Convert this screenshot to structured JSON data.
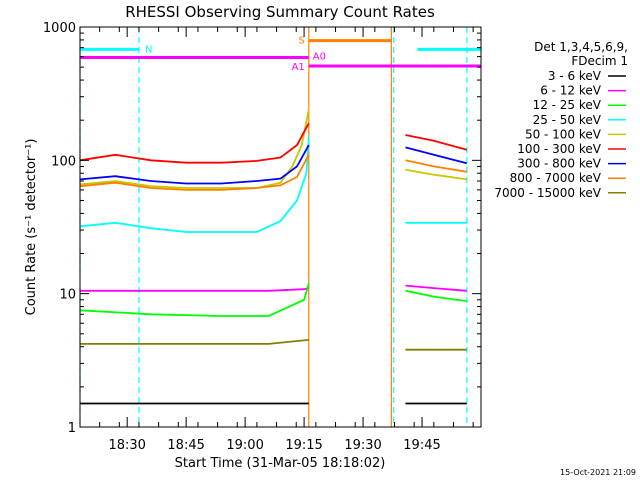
{
  "chart_data": {
    "type": "line",
    "title": "RHESSI Observing Summary Count Rates",
    "xlabel": "Start Time (31-Mar-05 18:18:02)",
    "ylabel": "Count Rate (s⁻¹ detector⁻¹)",
    "x_range_min": [
      18.3,
      20.0
    ],
    "y_scale": "log",
    "ylim": [
      1,
      1000
    ],
    "x_ticks": [
      {
        "label": "18:30",
        "v": 18.5
      },
      {
        "label": "18:45",
        "v": 18.75
      },
      {
        "label": "19:00",
        "v": 19.0
      },
      {
        "label": "19:15",
        "v": 19.25
      },
      {
        "label": "19:30",
        "v": 19.5
      },
      {
        "label": "19:45",
        "v": 19.75
      }
    ],
    "y_ticks": [
      {
        "label": "1",
        "v": 1
      },
      {
        "label": "10",
        "v": 10
      },
      {
        "label": "100",
        "v": 100
      },
      {
        "label": "1000",
        "v": 1000
      }
    ],
    "legend": {
      "header": [
        "Det 1,3,4,5,6,9,",
        "FDecim 1"
      ],
      "position": "right"
    },
    "series": [
      {
        "name": "3 - 6 keV",
        "color": "#000000",
        "segments": [
          {
            "x": [
              18.3,
              18.6,
              18.9,
              19.1,
              19.27
            ],
            "y": [
              1.5,
              1.5,
              1.5,
              1.5,
              1.5
            ]
          },
          {
            "x": [
              19.68,
              19.8,
              19.94
            ],
            "y": [
              1.5,
              1.5,
              1.5
            ]
          }
        ]
      },
      {
        "name": "6 - 12 keV",
        "color": "#ff00ff",
        "segments": [
          {
            "x": [
              18.3,
              18.6,
              18.9,
              19.1,
              19.25,
              19.27
            ],
            "y": [
              10.5,
              10.5,
              10.5,
              10.5,
              10.8,
              11
            ]
          },
          {
            "x": [
              19.68,
              19.8,
              19.94
            ],
            "y": [
              11.5,
              11,
              10.5
            ]
          }
        ]
      },
      {
        "name": "12 - 25 keV",
        "color": "#00ff00",
        "segments": [
          {
            "x": [
              18.3,
              18.6,
              18.9,
              19.1,
              19.25,
              19.27
            ],
            "y": [
              7.5,
              7,
              6.8,
              6.8,
              9,
              12
            ]
          },
          {
            "x": [
              19.68,
              19.8,
              19.94
            ],
            "y": [
              10.5,
              9.5,
              8.8
            ]
          }
        ]
      },
      {
        "name": "25 - 50 keV",
        "color": "#00ffff",
        "segments": [
          {
            "x": [
              18.3,
              18.45,
              18.6,
              18.75,
              18.9,
              19.05,
              19.15,
              19.22,
              19.26,
              19.27
            ],
            "y": [
              32,
              34,
              31,
              29,
              29,
              29,
              35,
              50,
              80,
              150
            ]
          },
          {
            "x": [
              19.68,
              19.8,
              19.94
            ],
            "y": [
              34,
              34,
              34
            ]
          }
        ]
      },
      {
        "name": "50 - 100 keV",
        "color": "#c8c800",
        "segments": [
          {
            "x": [
              18.3,
              18.45,
              18.6,
              18.75,
              18.9,
              19.05,
              19.15,
              19.2,
              19.24,
              19.27
            ],
            "y": [
              66,
              70,
              64,
              62,
              62,
              62,
              68,
              90,
              130,
              240
            ]
          },
          {
            "x": [
              19.68,
              19.8,
              19.94
            ],
            "y": [
              85,
              78,
              72
            ]
          }
        ]
      },
      {
        "name": "100 - 300 keV",
        "color": "#ff0000",
        "segments": [
          {
            "x": [
              18.3,
              18.45,
              18.6,
              18.75,
              18.9,
              19.05,
              19.15,
              19.22,
              19.27
            ],
            "y": [
              100,
              110,
              100,
              96,
              96,
              99,
              105,
              130,
              190
            ]
          },
          {
            "x": [
              19.68,
              19.8,
              19.94
            ],
            "y": [
              155,
              140,
              120
            ]
          }
        ]
      },
      {
        "name": "300 - 800 keV",
        "color": "#0000ff",
        "segments": [
          {
            "x": [
              18.3,
              18.45,
              18.6,
              18.75,
              18.9,
              19.05,
              19.15,
              19.22,
              19.27
            ],
            "y": [
              72,
              76,
              70,
              67,
              67,
              70,
              73,
              90,
              130
            ]
          },
          {
            "x": [
              19.68,
              19.8,
              19.94
            ],
            "y": [
              125,
              110,
              95
            ]
          }
        ]
      },
      {
        "name": "800 - 7000 keV",
        "color": "#ff8000",
        "segments": [
          {
            "x": [
              18.3,
              18.45,
              18.6,
              18.75,
              18.9,
              19.05,
              19.15,
              19.22,
              19.27
            ],
            "y": [
              64,
              68,
              62,
              60,
              60,
              62,
              65,
              75,
              110
            ]
          },
          {
            "x": [
              19.68,
              19.8,
              19.94
            ],
            "y": [
              100,
              90,
              82
            ]
          }
        ]
      },
      {
        "name": "7000 - 15000 keV",
        "color": "#808000",
        "segments": [
          {
            "x": [
              18.3,
              18.6,
              18.9,
              19.1,
              19.27
            ],
            "y": [
              4.2,
              4.2,
              4.2,
              4.2,
              4.5
            ]
          },
          {
            "x": [
              19.68,
              19.8,
              19.94
            ],
            "y": [
              3.8,
              3.8,
              3.8
            ]
          }
        ]
      }
    ],
    "flag_bars": [
      {
        "label": "N",
        "color": "#00ffff",
        "y": 680,
        "segments": [
          [
            18.3,
            18.55
          ],
          [
            19.73,
            20.0
          ]
        ]
      },
      {
        "label": "S",
        "color": "#ff8000",
        "y": 790,
        "segments": [
          [
            19.27,
            19.62
          ]
        ]
      },
      {
        "label": "A0",
        "color": "#ff00ff",
        "y": 590,
        "segments": [
          [
            18.3,
            19.27
          ]
        ]
      },
      {
        "label": "A1",
        "color": "#ff00ff",
        "y": 510,
        "segments": [
          [
            19.27,
            20.0
          ]
        ]
      }
    ],
    "vertical_lines": [
      {
        "color": "#00ffff",
        "x": 18.3,
        "style": "dashed"
      },
      {
        "color": "#00ffff",
        "x": 18.55,
        "style": "dashed"
      },
      {
        "color": "#00ffff",
        "x": 19.63,
        "style": "dashed"
      },
      {
        "color": "#00ffff",
        "x": 19.94,
        "style": "dashed"
      },
      {
        "color": "#ff8000",
        "x": 19.27,
        "style": "solid"
      },
      {
        "color": "#ff8000",
        "x": 19.62,
        "style": "solid"
      }
    ]
  },
  "footer": {
    "timestamp": "15-Oct-2021 21:09"
  }
}
